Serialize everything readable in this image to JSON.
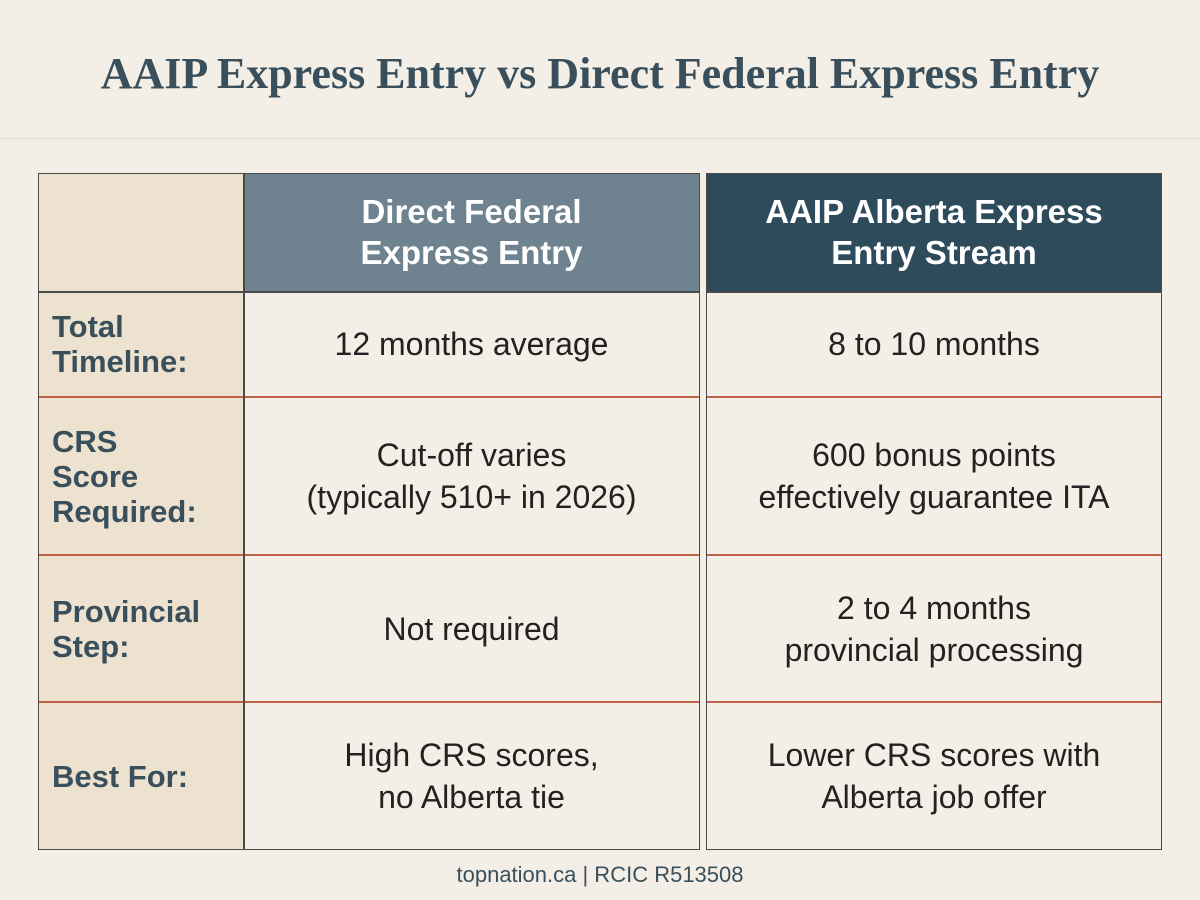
{
  "header": {
    "title": "AAIP Express Entry vs Direct Federal Express Entry"
  },
  "table": {
    "headers": [
      [
        "Direct Federal",
        "Express Entry"
      ],
      [
        "AAIP Alberta Express",
        "Entry Stream"
      ]
    ],
    "rows": [
      {
        "label": [
          "Total",
          "Timeline:"
        ],
        "cells": [
          [
            "12 months average"
          ],
          [
            "8 to 10 months"
          ]
        ]
      },
      {
        "label": [
          "CRS",
          "Score",
          "Required:"
        ],
        "cells": [
          [
            "Cut-off varies",
            "(typically 510+ in 2026)"
          ],
          [
            "600 bonus points",
            "effectively guarantee ITA"
          ]
        ]
      },
      {
        "label": [
          "Provincial",
          "Step:"
        ],
        "cells": [
          [
            "Not required"
          ],
          [
            "2 to 4 months",
            "provincial processing"
          ]
        ]
      },
      {
        "label": [
          "Best For:"
        ],
        "cells": [
          [
            "High CRS scores,",
            "no Alberta tie"
          ],
          [
            "Lower CRS scores with",
            "Alberta job offer"
          ]
        ]
      }
    ]
  },
  "footer": {
    "text": "topnation.ca | RCIC R513508"
  }
}
